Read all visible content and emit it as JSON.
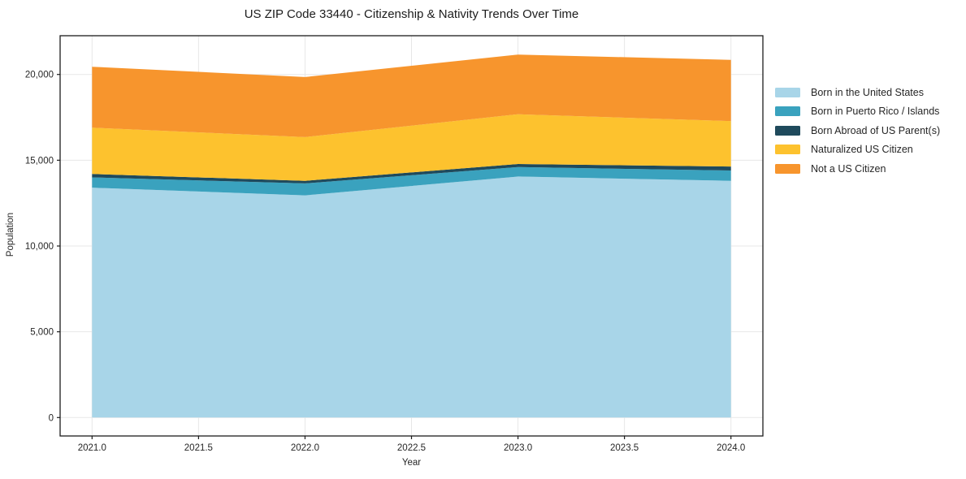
{
  "figure": {
    "title": "US ZIP Code 33440 - Citizenship & Nativity Trends Over Time",
    "xlabel": "Year",
    "ylabel": "Population"
  },
  "chart_data": {
    "type": "area",
    "stacked": true,
    "title": "US ZIP Code 33440 - Citizenship & Nativity Trends Over Time",
    "xlabel": "Year",
    "ylabel": "Population",
    "x": [
      2021,
      2022,
      2023,
      2024
    ],
    "series": [
      {
        "name": "Born in the United States",
        "color": "#A8D5E8",
        "values": [
          13400,
          12950,
          14050,
          13800
        ]
      },
      {
        "name": "Born in Puerto Rico / Islands",
        "color": "#3AA2BE",
        "values": [
          600,
          700,
          550,
          600
        ]
      },
      {
        "name": "Born Abroad of US Parent(s)",
        "color": "#1F4A5C",
        "values": [
          200,
          150,
          180,
          230
        ]
      },
      {
        "name": "Naturalized US Citizen",
        "color": "#FDC22E",
        "values": [
          2700,
          2550,
          2900,
          2650
        ]
      },
      {
        "name": "Not a US Citizen",
        "color": "#F7952D",
        "values": [
          3550,
          3500,
          3480,
          3570
        ]
      }
    ],
    "totals": [
      20450,
      19850,
      21160,
      20850
    ],
    "x_ticks": {
      "values": [
        2021.0,
        2021.5,
        2022.0,
        2022.5,
        2023.0,
        2023.5,
        2024.0
      ],
      "labels": [
        "2021.0",
        "2021.5",
        "2022.0",
        "2022.5",
        "2023.0",
        "2023.5",
        "2024.0"
      ]
    },
    "y_ticks": {
      "values": [
        0,
        5000,
        10000,
        15000,
        20000
      ],
      "labels": [
        "0",
        "5,000",
        "10,000",
        "15,000",
        "20,000"
      ]
    },
    "xlim": [
      2020.85,
      2024.15
    ],
    "ylim": [
      -1074,
      22258
    ],
    "grid": true,
    "legend_position": "right"
  },
  "colors": {
    "grid": "#e7e7e7",
    "spine": "#1c1c1c",
    "tick_text": "#262626",
    "background": "#ffffff"
  }
}
